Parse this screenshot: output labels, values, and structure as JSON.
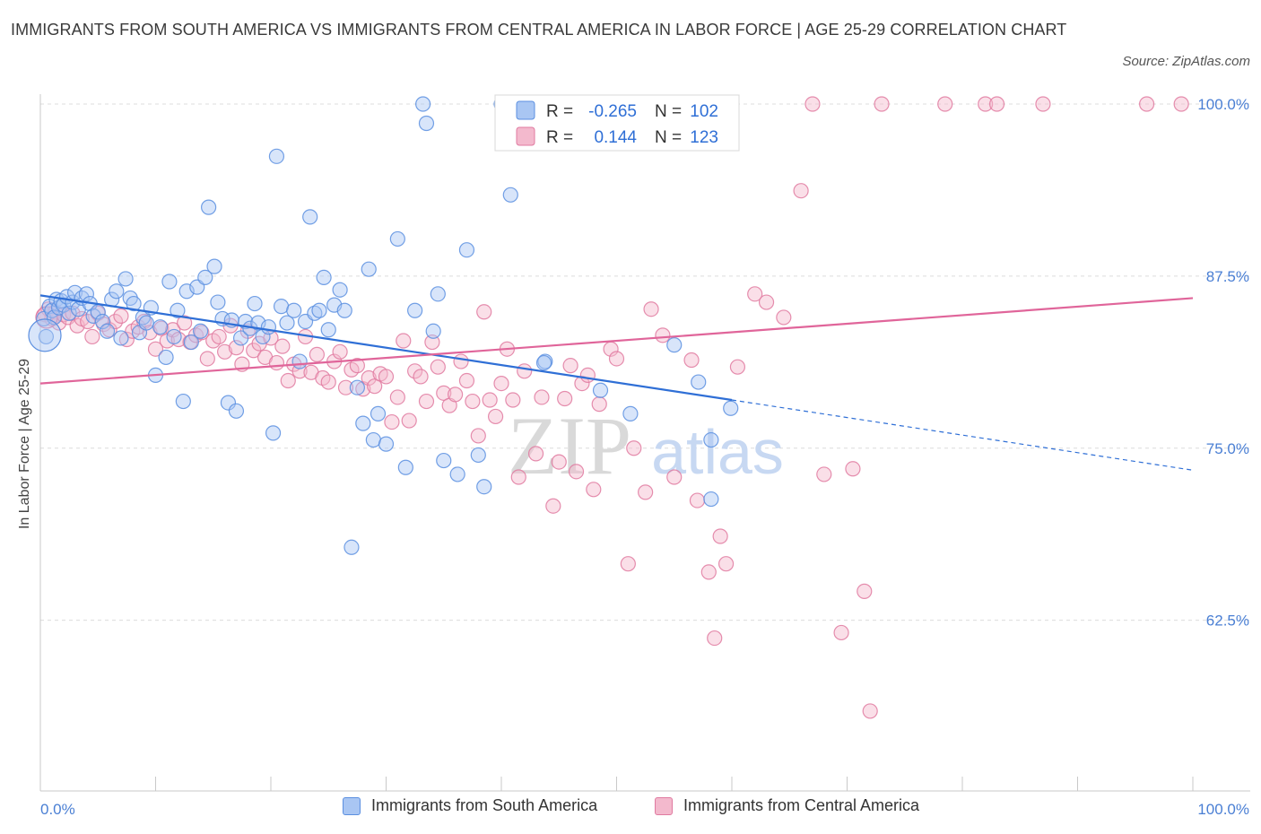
{
  "title": "IMMIGRANTS FROM SOUTH AMERICA VS IMMIGRANTS FROM CENTRAL AMERICA IN LABOR FORCE | AGE 25-29 CORRELATION CHART",
  "source": "Source: ZipAtlas.com",
  "watermark": {
    "zip": "ZIP",
    "atlas": "atlas"
  },
  "colors": {
    "blue": "#5b8fe0",
    "blue_fill": "#a9c6f3",
    "blue_line": "#2f6fd6",
    "pink": "#e07aa0",
    "pink_fill": "#f3b9cd",
    "pink_line": "#e0659a",
    "tick": "#4a7fd4"
  },
  "legend": {
    "r_label": "R =",
    "n_label": "N =",
    "items": [
      {
        "r": "-0.265",
        "n": "102"
      },
      {
        "r": "0.144",
        "n": "123"
      }
    ]
  },
  "chart_data": {
    "type": "scatter",
    "title": "IMMIGRANTS FROM SOUTH AMERICA VS IMMIGRANTS FROM CENTRAL AMERICA IN LABOR FORCE | AGE 25-29 CORRELATION CHART",
    "xlabel": "",
    "ylabel": "In Labor Force | Age 25-29",
    "xlim": [
      0,
      100
    ],
    "ylim": [
      50,
      101
    ],
    "x_tick_labels": [
      "0.0%",
      "100.0%"
    ],
    "y_ticks": [
      62.5,
      75.0,
      87.5,
      100.0
    ],
    "y_tick_labels": [
      "62.5%",
      "75.0%",
      "87.5%",
      "100.0%"
    ],
    "grid": "horizontal dashed",
    "legend_position": "top-center",
    "series": [
      {
        "name": "Immigrants from South America",
        "r": -0.265,
        "n": 102,
        "trend": {
          "x0": 0,
          "y0": 86.1,
          "x1": 60,
          "y1": 78.5,
          "dashed_to": 100,
          "dashed_y": 73.4
        },
        "points": [
          [
            0.3,
            84.4
          ],
          [
            0.5,
            83.1
          ],
          [
            0.8,
            85.3
          ],
          [
            1.0,
            85.0
          ],
          [
            1.2,
            84.5
          ],
          [
            1.4,
            85.8
          ],
          [
            1.6,
            85.2
          ],
          [
            1.8,
            85.7
          ],
          [
            2.0,
            85.4
          ],
          [
            2.3,
            86.0
          ],
          [
            2.5,
            84.8
          ],
          [
            2.8,
            85.6
          ],
          [
            3.0,
            86.3
          ],
          [
            3.3,
            85.1
          ],
          [
            3.6,
            85.9
          ],
          [
            4.0,
            86.2
          ],
          [
            4.3,
            85.5
          ],
          [
            4.6,
            84.6
          ],
          [
            5.0,
            84.9
          ],
          [
            5.4,
            84.2
          ],
          [
            5.8,
            83.5
          ],
          [
            6.2,
            85.8
          ],
          [
            6.6,
            86.4
          ],
          [
            7.0,
            83.0
          ],
          [
            7.4,
            87.3
          ],
          [
            7.8,
            85.9
          ],
          [
            8.1,
            85.5
          ],
          [
            8.6,
            83.4
          ],
          [
            8.9,
            84.5
          ],
          [
            9.2,
            84.1
          ],
          [
            9.6,
            85.2
          ],
          [
            10.0,
            80.3
          ],
          [
            10.4,
            83.8
          ],
          [
            10.9,
            81.6
          ],
          [
            11.2,
            87.1
          ],
          [
            11.6,
            83.1
          ],
          [
            11.9,
            85.0
          ],
          [
            12.4,
            78.4
          ],
          [
            12.7,
            86.4
          ],
          [
            13.1,
            82.7
          ],
          [
            13.6,
            86.7
          ],
          [
            13.9,
            83.5
          ],
          [
            14.3,
            87.4
          ],
          [
            14.6,
            92.5
          ],
          [
            15.1,
            88.2
          ],
          [
            15.4,
            85.6
          ],
          [
            15.8,
            84.4
          ],
          [
            16.3,
            78.3
          ],
          [
            16.6,
            84.3
          ],
          [
            17.0,
            77.7
          ],
          [
            17.4,
            83.0
          ],
          [
            17.8,
            84.2
          ],
          [
            18.2,
            83.7
          ],
          [
            18.6,
            85.5
          ],
          [
            18.9,
            84.1
          ],
          [
            19.3,
            83.1
          ],
          [
            19.8,
            83.8
          ],
          [
            20.2,
            76.1
          ],
          [
            20.5,
            96.2
          ],
          [
            20.9,
            85.3
          ],
          [
            21.4,
            84.1
          ],
          [
            22.0,
            85.0
          ],
          [
            22.5,
            81.3
          ],
          [
            23.0,
            84.2
          ],
          [
            23.4,
            91.8
          ],
          [
            23.8,
            84.8
          ],
          [
            24.2,
            85.0
          ],
          [
            24.6,
            87.4
          ],
          [
            25.0,
            83.6
          ],
          [
            25.5,
            85.4
          ],
          [
            26.0,
            86.5
          ],
          [
            26.4,
            85.0
          ],
          [
            27.0,
            67.8
          ],
          [
            27.5,
            79.4
          ],
          [
            28.0,
            76.8
          ],
          [
            28.5,
            88.0
          ],
          [
            28.9,
            75.6
          ],
          [
            29.3,
            77.5
          ],
          [
            30.0,
            75.3
          ],
          [
            31.0,
            90.2
          ],
          [
            31.7,
            73.6
          ],
          [
            32.5,
            85.0
          ],
          [
            33.2,
            100.0
          ],
          [
            33.5,
            98.6
          ],
          [
            34.1,
            83.5
          ],
          [
            35.0,
            74.1
          ],
          [
            36.2,
            73.1
          ],
          [
            37.0,
            89.4
          ],
          [
            38.0,
            74.5
          ],
          [
            38.5,
            72.2
          ],
          [
            40.0,
            100.0
          ],
          [
            40.8,
            93.4
          ],
          [
            43.8,
            81.3
          ],
          [
            48.6,
            79.2
          ],
          [
            51.2,
            77.5
          ],
          [
            55.0,
            82.5
          ],
          [
            57.1,
            79.8
          ],
          [
            58.2,
            71.3
          ],
          [
            59.9,
            77.9
          ],
          [
            58.2,
            75.6
          ],
          [
            43.7,
            81.2
          ],
          [
            34.5,
            86.2
          ]
        ]
      },
      {
        "name": "Immigrants from Central America",
        "r": 0.144,
        "n": 123,
        "trend": {
          "x0": 0,
          "y0": 79.7,
          "x1": 100,
          "y1": 85.9
        },
        "points": [
          [
            0.4,
            84.7
          ],
          [
            0.7,
            85.1
          ],
          [
            1.0,
            84.4
          ],
          [
            1.3,
            84.9
          ],
          [
            1.6,
            84.1
          ],
          [
            2.0,
            84.7
          ],
          [
            2.4,
            84.5
          ],
          [
            2.8,
            84.8
          ],
          [
            3.2,
            83.9
          ],
          [
            3.6,
            84.4
          ],
          [
            4.1,
            84.2
          ],
          [
            4.5,
            83.1
          ],
          [
            5.0,
            84.8
          ],
          [
            5.5,
            84.0
          ],
          [
            6.0,
            83.6
          ],
          [
            6.5,
            84.2
          ],
          [
            7.0,
            84.6
          ],
          [
            7.5,
            82.9
          ],
          [
            8.0,
            83.5
          ],
          [
            8.5,
            83.8
          ],
          [
            9.0,
            84.2
          ],
          [
            9.5,
            83.4
          ],
          [
            10.0,
            82.2
          ],
          [
            10.5,
            83.7
          ],
          [
            11.0,
            82.8
          ],
          [
            11.5,
            83.6
          ],
          [
            12.0,
            82.9
          ],
          [
            12.5,
            84.1
          ],
          [
            13.0,
            82.7
          ],
          [
            13.5,
            83.2
          ],
          [
            14.0,
            83.4
          ],
          [
            14.5,
            81.5
          ],
          [
            15.0,
            82.8
          ],
          [
            15.5,
            83.1
          ],
          [
            16.0,
            82.0
          ],
          [
            16.5,
            83.9
          ],
          [
            17.0,
            82.3
          ],
          [
            17.5,
            81.1
          ],
          [
            18.0,
            83.5
          ],
          [
            18.5,
            82.1
          ],
          [
            19.0,
            82.6
          ],
          [
            19.5,
            81.6
          ],
          [
            20.0,
            83.0
          ],
          [
            20.5,
            81.2
          ],
          [
            21.0,
            82.4
          ],
          [
            21.5,
            79.9
          ],
          [
            22.0,
            81.1
          ],
          [
            22.5,
            80.6
          ],
          [
            23.0,
            83.1
          ],
          [
            23.5,
            80.5
          ],
          [
            24.0,
            81.8
          ],
          [
            24.5,
            80.1
          ],
          [
            25.0,
            79.8
          ],
          [
            25.5,
            81.3
          ],
          [
            26.0,
            82.0
          ],
          [
            26.5,
            79.4
          ],
          [
            27.0,
            80.7
          ],
          [
            27.5,
            81.0
          ],
          [
            28.0,
            79.3
          ],
          [
            28.5,
            80.1
          ],
          [
            29.0,
            79.5
          ],
          [
            29.5,
            80.4
          ],
          [
            30.0,
            80.2
          ],
          [
            30.5,
            76.9
          ],
          [
            31.0,
            78.7
          ],
          [
            31.5,
            82.8
          ],
          [
            32.0,
            77.0
          ],
          [
            32.5,
            80.6
          ],
          [
            33.0,
            80.2
          ],
          [
            33.5,
            78.4
          ],
          [
            34.0,
            82.7
          ],
          [
            34.5,
            80.9
          ],
          [
            35.0,
            79.0
          ],
          [
            35.5,
            78.1
          ],
          [
            36.0,
            78.9
          ],
          [
            36.5,
            81.3
          ],
          [
            37.0,
            79.9
          ],
          [
            37.5,
            78.4
          ],
          [
            38.0,
            75.9
          ],
          [
            38.5,
            84.9
          ],
          [
            39.0,
            78.5
          ],
          [
            39.5,
            77.3
          ],
          [
            40.0,
            79.7
          ],
          [
            40.5,
            82.2
          ],
          [
            41.0,
            78.5
          ],
          [
            41.5,
            72.9
          ],
          [
            42.0,
            80.6
          ],
          [
            43.0,
            74.6
          ],
          [
            43.5,
            78.7
          ],
          [
            44.5,
            70.8
          ],
          [
            45.0,
            74.0
          ],
          [
            45.5,
            78.6
          ],
          [
            46.0,
            81.0
          ],
          [
            46.5,
            73.3
          ],
          [
            47.0,
            79.7
          ],
          [
            47.5,
            80.3
          ],
          [
            48.0,
            72.0
          ],
          [
            48.5,
            78.2
          ],
          [
            49.5,
            82.2
          ],
          [
            50.0,
            81.5
          ],
          [
            51.0,
            66.6
          ],
          [
            51.5,
            75.0
          ],
          [
            52.5,
            71.8
          ],
          [
            53.0,
            85.1
          ],
          [
            54.0,
            83.2
          ],
          [
            55.0,
            72.9
          ],
          [
            56.5,
            81.4
          ],
          [
            57.0,
            71.2
          ],
          [
            58.0,
            66.0
          ],
          [
            58.5,
            61.2
          ],
          [
            59.0,
            68.6
          ],
          [
            59.5,
            66.6
          ],
          [
            60.5,
            80.9
          ],
          [
            62.0,
            86.2
          ],
          [
            63.0,
            85.6
          ],
          [
            64.5,
            84.5
          ],
          [
            66.0,
            93.7
          ],
          [
            68.0,
            73.1
          ],
          [
            69.5,
            61.6
          ],
          [
            70.5,
            73.5
          ],
          [
            71.5,
            64.6
          ],
          [
            72.0,
            55.9
          ],
          [
            73.0,
            100.0
          ],
          [
            82.0,
            100.0
          ],
          [
            83.0,
            100.0
          ],
          [
            87.0,
            100.0
          ],
          [
            96.0,
            100.0
          ],
          [
            99.0,
            100.0
          ],
          [
            67.0,
            100.0
          ],
          [
            78.5,
            100.0
          ],
          [
            51.0,
            100.0
          ]
        ]
      }
    ]
  },
  "bottom_legend": [
    "Immigrants from South America",
    "Immigrants from Central America"
  ]
}
